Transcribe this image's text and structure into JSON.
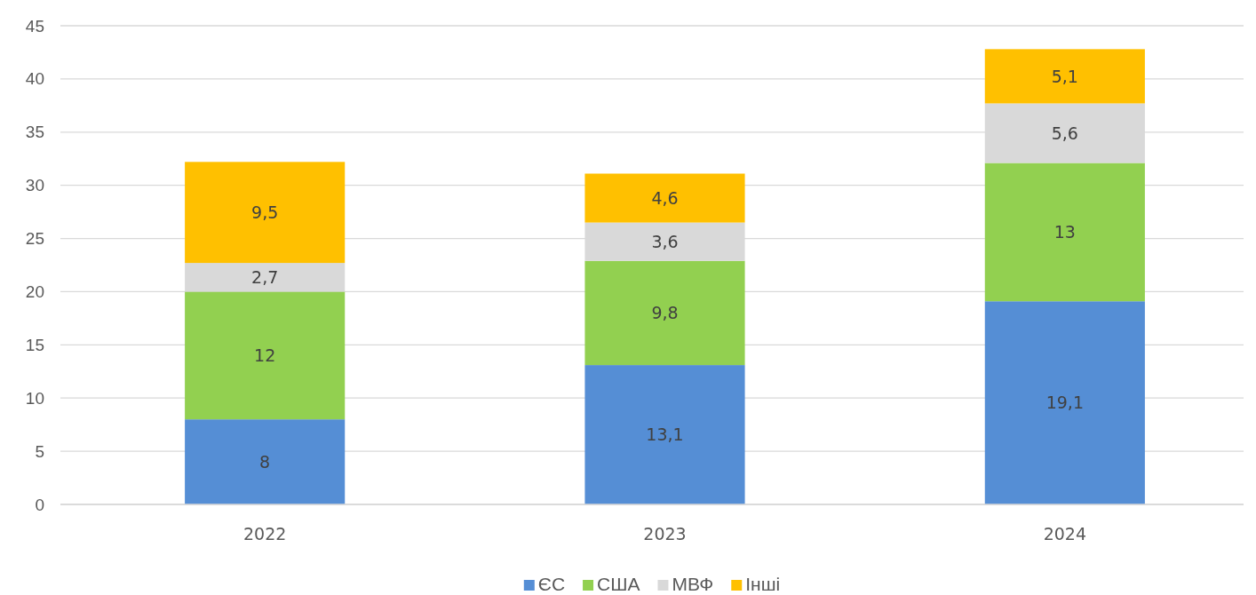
{
  "chart_data": {
    "type": "bar",
    "stacked": true,
    "categories": [
      "2022",
      "2023",
      "2024"
    ],
    "series": [
      {
        "name": "ЄС",
        "color": "#558ed5",
        "values": [
          8,
          13.1,
          19.1
        ],
        "value_labels": [
          "8",
          "13,1",
          "19,1"
        ]
      },
      {
        "name": "США",
        "color": "#92d050",
        "values": [
          12,
          9.8,
          13
        ],
        "value_labels": [
          "12",
          "9,8",
          "13"
        ]
      },
      {
        "name": "МВФ",
        "color": "#d9d9d9",
        "values": [
          2.7,
          3.6,
          5.6
        ],
        "value_labels": [
          "2,7",
          "3,6",
          "5,6"
        ]
      },
      {
        "name": "Інші",
        "color": "#ffc000",
        "values": [
          9.5,
          4.6,
          5.1
        ],
        "value_labels": [
          "9,5",
          "4,6",
          "5,1"
        ]
      }
    ],
    "ylim": [
      0,
      45
    ],
    "yticks": [
      0,
      5,
      10,
      15,
      20,
      25,
      30,
      35,
      40,
      45
    ],
    "grid": "y",
    "legend": "bottom"
  }
}
